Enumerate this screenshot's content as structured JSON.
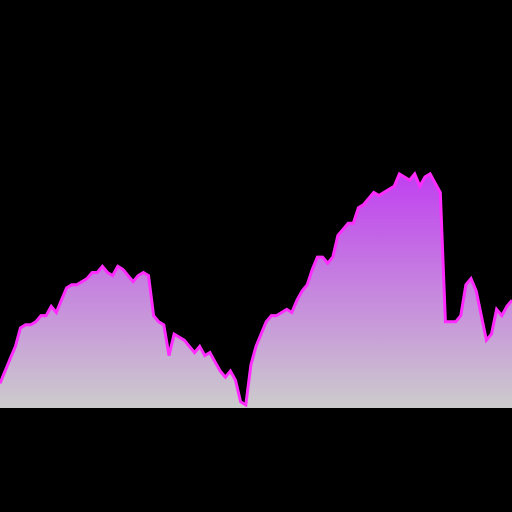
{
  "chart_data": {
    "type": "area",
    "title": "",
    "xlabel": "",
    "ylabel": "",
    "grid": false,
    "legend": "none",
    "xlim": [
      0,
      100
    ],
    "ylim": [
      0,
      100
    ],
    "x": [
      0,
      1,
      2,
      3,
      4,
      5,
      6,
      7,
      8,
      9,
      10,
      11,
      12,
      13,
      14,
      15,
      16,
      17,
      18,
      19,
      20,
      21,
      22,
      23,
      24,
      25,
      26,
      27,
      28,
      29,
      30,
      31,
      32,
      33,
      34,
      35,
      36,
      37,
      38,
      39,
      40,
      41,
      42,
      43,
      44,
      45,
      46,
      47,
      48,
      49,
      50,
      51,
      52,
      53,
      54,
      55,
      56,
      57,
      58,
      59,
      60,
      61,
      62,
      63,
      64,
      65,
      66,
      67,
      68,
      69,
      70,
      71,
      72,
      73,
      74,
      75,
      76,
      77,
      78,
      79,
      80,
      81,
      82,
      83,
      84,
      85,
      86,
      87,
      88,
      89,
      90,
      91,
      92,
      93,
      94,
      95,
      96,
      97,
      98,
      99,
      100
    ],
    "series": [
      {
        "values": [
          8,
          12,
          16,
          20,
          26,
          27,
          27,
          28,
          30,
          30,
          33,
          31,
          35,
          39,
          40,
          40,
          41,
          42,
          44,
          44,
          46,
          44,
          43,
          46,
          45,
          43,
          41,
          43,
          44,
          43,
          30,
          28,
          27,
          17,
          24,
          23,
          22,
          20,
          18,
          20,
          17,
          18,
          15,
          12,
          10,
          12,
          9,
          2,
          1,
          14,
          20,
          24,
          28,
          30,
          30,
          31,
          32,
          31,
          35,
          38,
          40,
          45,
          49,
          49,
          47,
          49,
          56,
          58,
          60,
          60,
          65,
          66,
          68,
          70,
          69,
          70,
          71,
          72,
          76,
          75,
          74,
          76,
          72,
          75,
          76,
          73,
          70,
          28,
          28,
          28,
          30,
          40,
          42,
          38,
          30,
          22,
          24,
          32,
          30,
          33,
          35
        ]
      }
    ],
    "colors": {
      "background": "#000000",
      "line": "#ff2bff",
      "fill_top": "#c040f0",
      "fill_bottom": "#cccccc"
    }
  }
}
